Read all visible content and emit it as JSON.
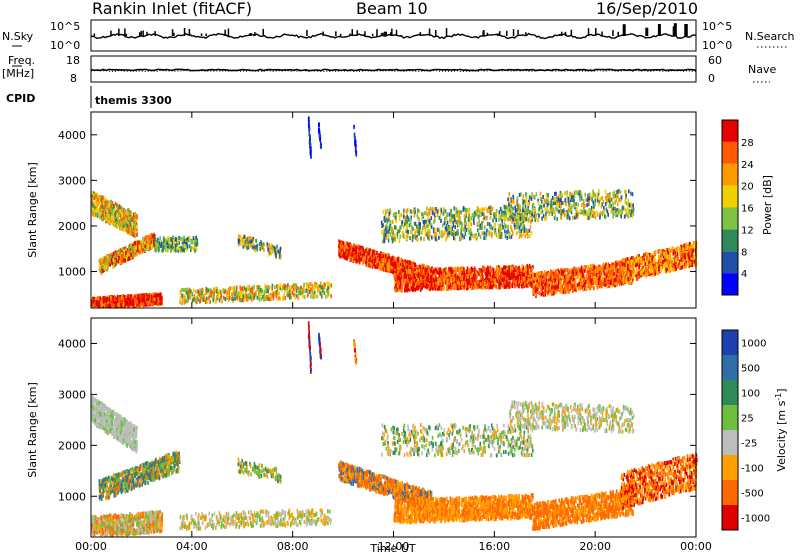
{
  "header": {
    "station": "Rankin Inlet (fitACF)",
    "beam": "Beam 10",
    "date": "16/Sep/2010"
  },
  "strip": {
    "nsky_label": "N.Sky",
    "nsky_top": "10^5",
    "nsky_bottom": "10^0",
    "nsearch_label": "N.Search",
    "nsearch_top": "10^5",
    "nsearch_bottom": "10^0",
    "freq_label": "Freq.",
    "freq_unit": "[MHz]",
    "freq_top": "18",
    "freq_bottom": "8",
    "nave_label": "Nave",
    "nave_top": "60",
    "nave_bottom": "0",
    "cpid_label": "CPID",
    "cpid_value": "themis 3300"
  },
  "chart_data": [
    {
      "type": "heatmap",
      "panel": "power",
      "ylabel": "Slant Range [km]",
      "xlabel": "",
      "x_ticks": [
        "00:00",
        "04:00",
        "08:00",
        "12:00",
        "16:00",
        "20:00",
        "00:00"
      ],
      "x_range_hours": [
        0,
        24
      ],
      "y_ticks": [
        "1000",
        "2000",
        "3000",
        "4000"
      ],
      "ylim": [
        200,
        4500
      ],
      "colorbar_label": "Power [dB]",
      "colorbar_ticks": [
        "4",
        "8",
        "12",
        "16",
        "20",
        "24",
        "28"
      ],
      "colorbar_range": [
        0,
        32
      ],
      "colors": [
        "#0000ff",
        "#1f4fa8",
        "#2e8b57",
        "#7fc241",
        "#f0d000",
        "#ff9a00",
        "#ff5a00",
        "#e60000"
      ]
    },
    {
      "type": "heatmap",
      "panel": "velocity",
      "ylabel": "Slant Range [km]",
      "xlabel": "Time UT",
      "x_ticks": [
        "00:00",
        "04:00",
        "08:00",
        "12:00",
        "16:00",
        "20:00",
        "00:00"
      ],
      "x_range_hours": [
        0,
        24
      ],
      "y_ticks": [
        "1000",
        "2000",
        "3000",
        "4000"
      ],
      "ylim": [
        200,
        4500
      ],
      "colorbar_label": "Velocity [m s^-1]",
      "colorbar_ticks": [
        "1000",
        "500",
        "100",
        "25",
        "-25",
        "-100",
        "-500",
        "-1000"
      ],
      "colors": [
        "#1f3fb0",
        "#2f6fa8",
        "#2e8b57",
        "#6fbf3f",
        "#bdbdbd",
        "#ffa000",
        "#ff6a00",
        "#e00000"
      ]
    }
  ]
}
